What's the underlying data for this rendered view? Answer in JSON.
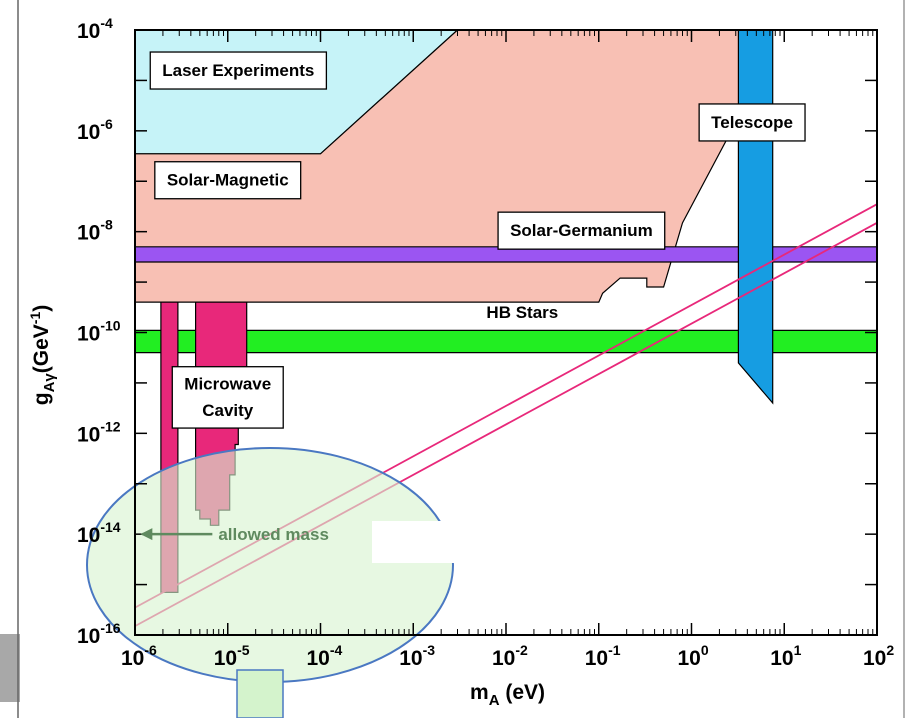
{
  "chart_data": {
    "type": "area",
    "title": "",
    "xlabel": "m",
    "xlabel_sub": "A",
    "xlabel_unit": " (eV)",
    "ylabel": "g",
    "ylabel_sub": "Aγ",
    "ylabel_unit_pre": "(GeV",
    "ylabel_unit_sup": "-1",
    "ylabel_unit_post": ")",
    "x_scale": "log",
    "y_scale": "log",
    "xlim": [
      1e-06,
      100
    ],
    "ylim": [
      1e-16,
      0.0001
    ],
    "x_ticks": [
      {
        "base": "10",
        "exp": "-6"
      },
      {
        "base": "10",
        "exp": "-5"
      },
      {
        "base": "10",
        "exp": "-4"
      },
      {
        "base": "10",
        "exp": "-3"
      },
      {
        "base": "10",
        "exp": "-2"
      },
      {
        "base": "10",
        "exp": "-1"
      },
      {
        "base": "10",
        "exp": "0"
      },
      {
        "base": "10",
        "exp": "1"
      },
      {
        "base": "10",
        "exp": "2"
      }
    ],
    "y_ticks": [
      {
        "base": "10",
        "exp": "-4"
      },
      {
        "base": "10",
        "exp": "-6"
      },
      {
        "base": "10",
        "exp": "-8"
      },
      {
        "base": "10",
        "exp": "-10"
      },
      {
        "base": "10",
        "exp": "-12"
      },
      {
        "base": "10",
        "exp": "-14"
      },
      {
        "base": "10",
        "exp": "-16"
      }
    ],
    "regions": [
      {
        "name": "Laser Experiments",
        "color": "#c6f3f8",
        "polygon": [
          [
            1e-06,
            0.0001
          ],
          [
            0.003,
            0.0001
          ],
          [
            0.0001,
            3.5e-07
          ],
          [
            1e-06,
            3.5e-07
          ]
        ]
      },
      {
        "name": "Solar-Magnetic",
        "color": "#f8c0b4",
        "polygon": [
          [
            1e-06,
            3.5e-07
          ],
          [
            0.0001,
            3.5e-07
          ],
          [
            0.003,
            0.0001
          ],
          [
            3.5,
            0.0001
          ],
          [
            3.5,
            2.5e-06
          ],
          [
            0.8,
            1.5e-08
          ],
          [
            0.5,
            8e-10
          ],
          [
            0.33,
            8e-10
          ],
          [
            0.33,
            1.2e-09
          ],
          [
            0.17,
            1.2e-09
          ],
          [
            0.11,
            6e-10
          ],
          [
            0.1,
            4e-10
          ],
          [
            1e-06,
            4e-10
          ]
        ]
      },
      {
        "name": "Solar-Germanium",
        "color": "#9b55f2",
        "polygon": [
          [
            1e-06,
            5e-09
          ],
          [
            100,
            5e-09
          ],
          [
            100,
            2.5e-09
          ],
          [
            1e-06,
            2.5e-09
          ]
        ]
      },
      {
        "name": "HB Stars",
        "color": "#22ee22",
        "polygon": [
          [
            1e-06,
            1.1e-10
          ],
          [
            100,
            1.1e-10
          ],
          [
            100,
            4e-11
          ],
          [
            1e-06,
            4e-11
          ]
        ]
      },
      {
        "name": "Telescope",
        "color": "#169de2",
        "polygon": [
          [
            3.2,
            0.0001
          ],
          [
            7.5,
            0.0001
          ],
          [
            7.5,
            4e-12
          ],
          [
            3.2,
            2.5e-11
          ]
        ]
      },
      {
        "name": "Microwave Cavity",
        "color": "#e8287a",
        "polygon": [
          [
            1.9e-06,
            4e-10
          ],
          [
            2.9e-06,
            4e-10
          ],
          [
            2.9e-06,
            7e-16
          ],
          [
            1.9e-06,
            7e-16
          ]
        ]
      },
      {
        "name": "Microwave Cavity",
        "color": "#e8287a",
        "polygon": [
          [
            4.5e-06,
            4e-10
          ],
          [
            1.6e-05,
            4e-10
          ],
          [
            1.6e-05,
            1.5e-12
          ],
          [
            1.3e-05,
            1.5e-12
          ],
          [
            1.3e-05,
            6e-13
          ],
          [
            1.2e-05,
            6e-13
          ],
          [
            1.2e-05,
            1.5e-13
          ],
          [
            1.05e-05,
            1.5e-13
          ],
          [
            1.05e-05,
            3e-14
          ],
          [
            8e-06,
            3e-14
          ],
          [
            8e-06,
            1.5e-14
          ],
          [
            6.5e-06,
            1.5e-14
          ],
          [
            6.5e-06,
            2e-14
          ],
          [
            5e-06,
            2e-14
          ],
          [
            5e-06,
            3e-14
          ],
          [
            4.5e-06,
            3e-14
          ]
        ]
      }
    ],
    "series": [
      {
        "color": "#e8287a",
        "x": [
          1e-06,
          100
        ],
        "y": [
          3.5e-16,
          3.5e-08
        ]
      },
      {
        "color": "#e8287a",
        "x": [
          1e-06,
          100
        ],
        "y": [
          1.5e-16,
          1.5e-08
        ]
      }
    ],
    "region_labels": [
      {
        "text": "Laser Experiments",
        "x": 1.3e-05,
        "y": 1.5e-05
      },
      {
        "text": "Solar-Magnetic",
        "x": 1e-05,
        "y": 1e-07
      },
      {
        "text": "Solar-Germanium",
        "x": 0.065,
        "y": 1e-08
      },
      {
        "text": "HB Stars",
        "x": 0.015,
        "y": 2.4e-10
      },
      {
        "text": "Telescope",
        "x": 4.5,
        "y": 1.4e-06
      },
      {
        "text": "Microwave",
        "x": 1e-05,
        "y": 9e-12
      },
      {
        "text": "Cavity",
        "x": 1e-05,
        "y": 2.7e-12
      }
    ],
    "annotation": {
      "text": "allowed mass",
      "color": "#5f8a5f",
      "x": 1.2e-06,
      "y": 1e-14
    }
  }
}
